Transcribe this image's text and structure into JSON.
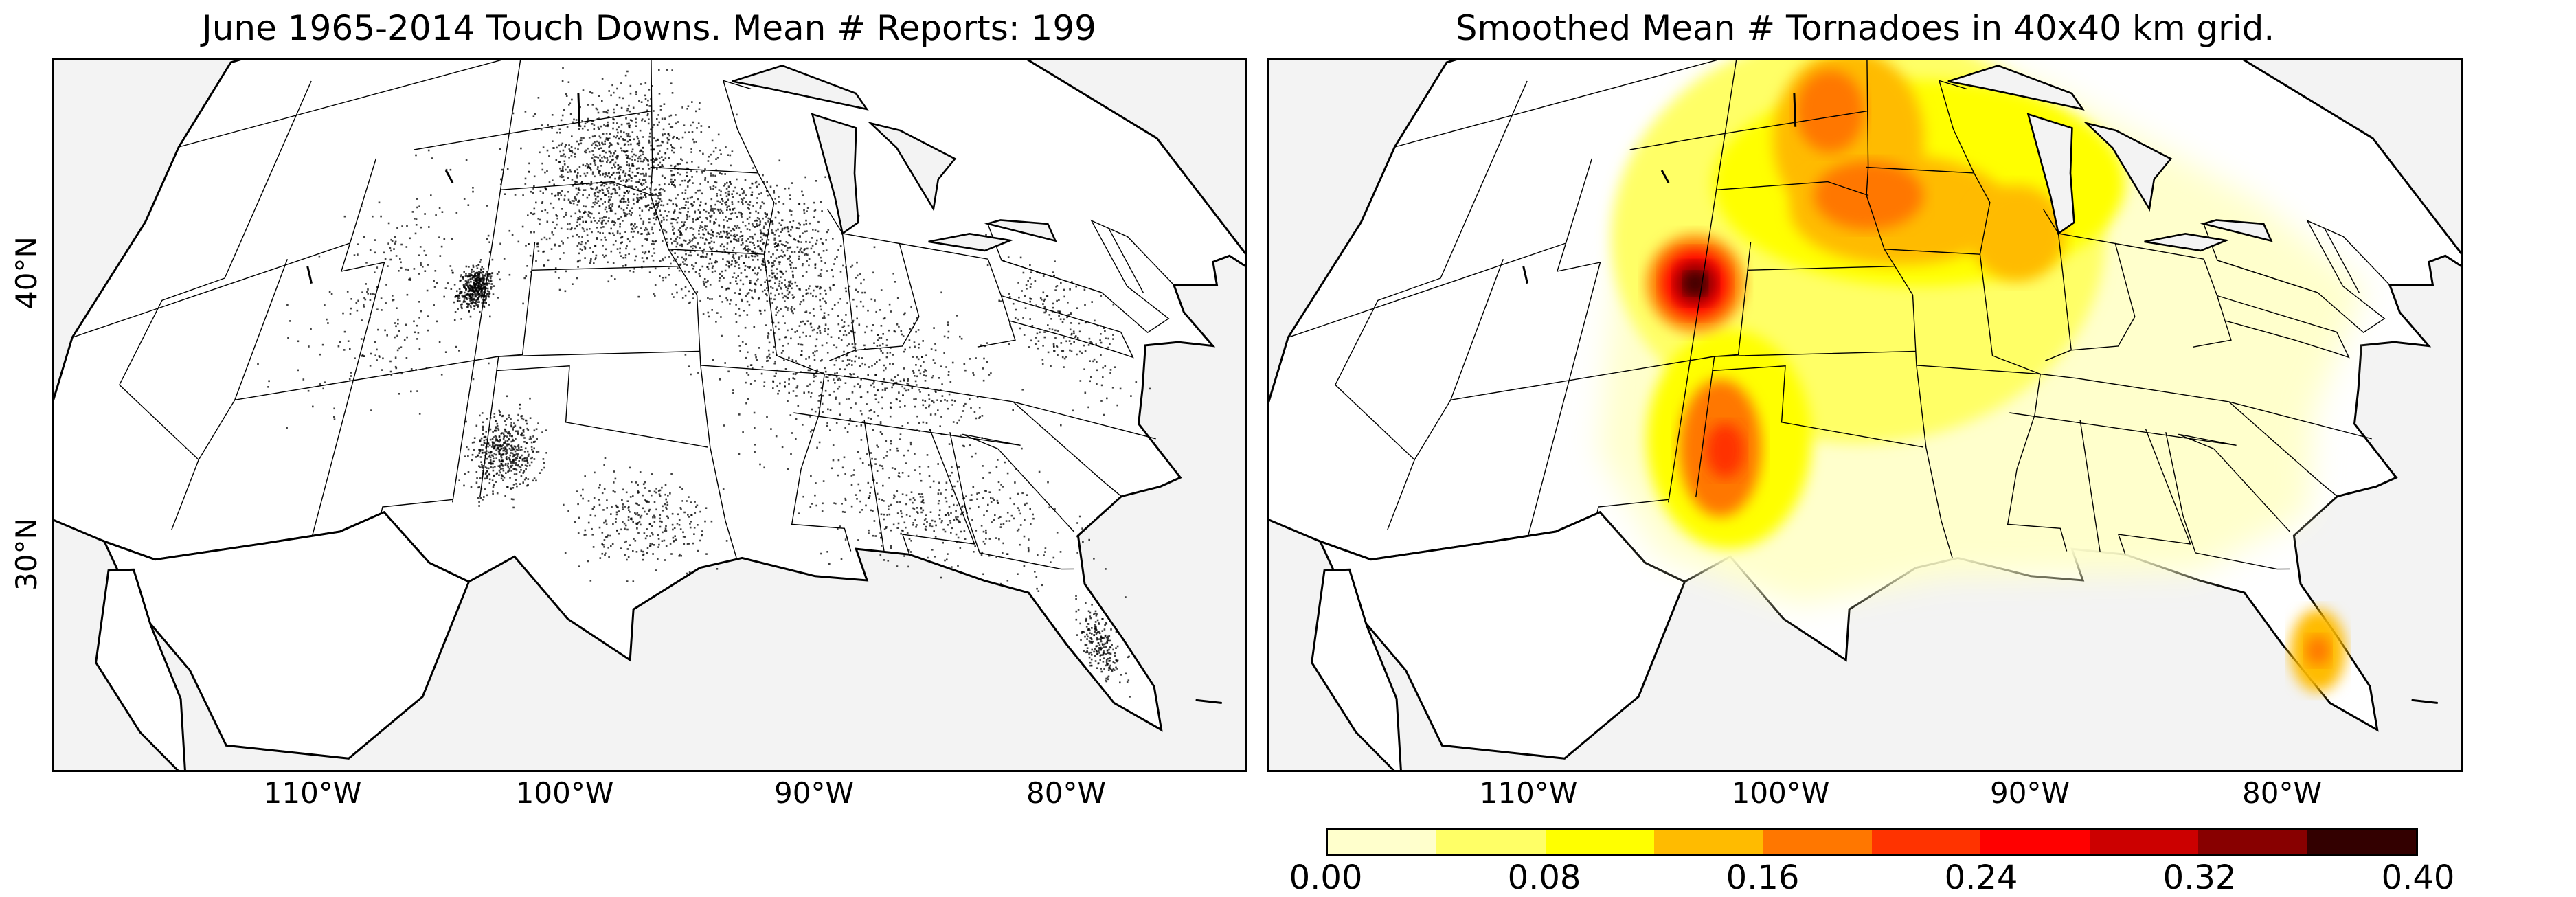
{
  "left_panel": {
    "title": "June 1965-2014 Touch Downs. Mean # Reports: 199",
    "lon_ticks": [
      "110°W",
      "100°W",
      "90°W",
      "80°W"
    ],
    "lat_ticks": [
      "40°N",
      "30°N"
    ],
    "point_color": "#000000",
    "hotspots": [
      {
        "name": "northern-plains",
        "lon": -98,
        "lat": 44,
        "density": "high"
      },
      {
        "name": "colorado-front-range",
        "lon": -104.5,
        "lat": 39.5,
        "density": "very-high"
      },
      {
        "name": "southern-high-plains",
        "lon": -102,
        "lat": 33.5,
        "density": "high"
      },
      {
        "name": "florida",
        "lon": -81.5,
        "lat": 27.5,
        "density": "medium"
      },
      {
        "name": "upper-midwest",
        "lon": -91,
        "lat": 42,
        "density": "medium"
      }
    ]
  },
  "right_panel": {
    "title": "Smoothed Mean # Tornadoes in 40x40 km grid.",
    "lon_ticks": [
      "110°W",
      "100°W",
      "90°W",
      "80°W"
    ],
    "maxima": [
      {
        "name": "northeast-colorado",
        "lon": -104.3,
        "lat": 39.7,
        "value": 0.38
      },
      {
        "name": "west-texas",
        "lon": -101.8,
        "lat": 33.6,
        "value": 0.22
      },
      {
        "name": "nebraska-iowa",
        "lon": -96.5,
        "lat": 42.5,
        "value": 0.2
      },
      {
        "name": "south-dakota",
        "lon": -98.5,
        "lat": 45.5,
        "value": 0.16
      },
      {
        "name": "central-florida",
        "lon": -81.5,
        "lat": 27.8,
        "value": 0.14
      },
      {
        "name": "illinois",
        "lon": -89.5,
        "lat": 41.5,
        "value": 0.14
      }
    ]
  },
  "colorbar": {
    "ticks": [
      "0.00",
      "0.08",
      "0.16",
      "0.24",
      "0.32",
      "0.40"
    ],
    "levels": [
      0.0,
      0.04,
      0.08,
      0.12,
      0.16,
      0.2,
      0.24,
      0.28,
      0.32,
      0.36,
      0.4
    ],
    "colors": [
      "#ffffcc",
      "#ffff66",
      "#ffff00",
      "#ffbb00",
      "#ff7700",
      "#ff3300",
      "#ff0000",
      "#cc0000",
      "#880000",
      "#330000"
    ]
  }
}
